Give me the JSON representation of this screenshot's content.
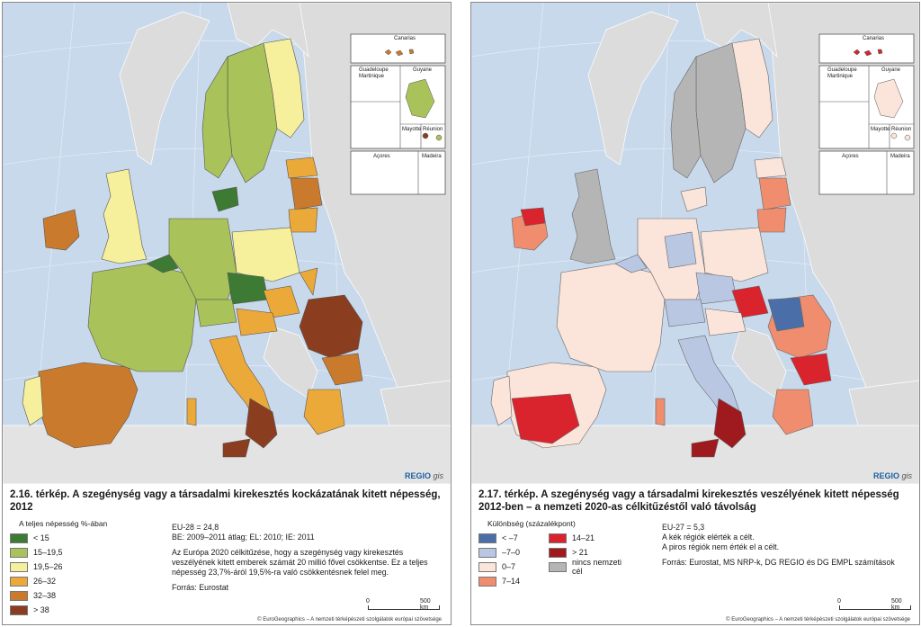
{
  "left": {
    "caption": "2.16. térkép. A szegénység vagy a társadalmi kirekesztés kockázatának kitett népesség, 2012",
    "legend_title": "A teljes népesség %-ában",
    "legend": [
      {
        "label": "< 15",
        "color": "#3d7a33"
      },
      {
        "label": "15–19,5",
        "color": "#a9c25a"
      },
      {
        "label": "19,5–26",
        "color": "#f6ef9b"
      },
      {
        "label": "26–32",
        "color": "#eba93a"
      },
      {
        "label": "32–38",
        "color": "#c97a2d"
      },
      {
        "label": "> 38",
        "color": "#8b3e1f"
      }
    ],
    "notes": [
      "EU-28 = 24,8",
      "BE: 2009–2011 átlag; EL: 2010; IE: 2011",
      "",
      "Az Európa 2020 célkitűzése, hogy a szegénység vagy kirekesztés veszélyének kitett emberek számát 20 millió fővel csökkentse. Ez a teljes népesség 23,7%-áról 19,5%-ra való csökkentésnek felel meg.",
      "",
      "Forrás: Eurostat"
    ],
    "regio": "REGIO",
    "regio_suffix": "gis",
    "scale_start": "0",
    "scale_end": "500 km",
    "copyright": "© EuroGeographics – A nemzeti térképészeti szolgálatok európai szövetsége",
    "inset_labels": {
      "canarias": "Canarias",
      "guadeloupe": "Guadeloupe",
      "martinique": "Martinique",
      "guyane": "Guyane",
      "mayotte": "Mayotte",
      "reunion": "Réunion",
      "acores": "Açores",
      "madeira": "Madeira"
    }
  },
  "right": {
    "caption": "2.17. térkép. A szegénység vagy a társadalmi kirekesztés veszélyének kitett népesség 2012-ben – a nemzeti 2020-as célkitűzéstől való távolság",
    "legend_title": "Különbség (százalékpont)",
    "legend": [
      {
        "label": "< –7",
        "color": "#4a6fa8"
      },
      {
        "label": "14–21",
        "color": "#d9232d"
      },
      {
        "label": "–7–0",
        "color": "#b9c7e3"
      },
      {
        "label": "> 21",
        "color": "#9e1a1e"
      },
      {
        "label": "0–7",
        "color": "#fbe4da"
      },
      {
        "label": "nincs nemzeti cél",
        "color": "#b5b5b5"
      },
      {
        "label": "7–14",
        "color": "#ef8d6e"
      }
    ],
    "notes": [
      "EU-27 = 5,3",
      "A kék régiók elérték a célt.",
      "A piros régiók nem érték el a célt.",
      "",
      "Forrás: Eurostat, MS NRP-k, DG REGIO és DG EMPL számítások"
    ],
    "regio": "REGIO",
    "regio_suffix": "gis",
    "scale_start": "0",
    "scale_end": "500 km",
    "copyright": "© EuroGeographics – A nemzeti térképészeti szolgálatok európai szövetsége",
    "inset_labels": {
      "canarias": "Canarias",
      "guadeloupe": "Guadeloupe",
      "martinique": "Martinique",
      "guyane": "Guyane",
      "mayotte": "Mayotte",
      "reunion": "Réunion",
      "acores": "Açores",
      "madeira": "Madeira"
    }
  }
}
